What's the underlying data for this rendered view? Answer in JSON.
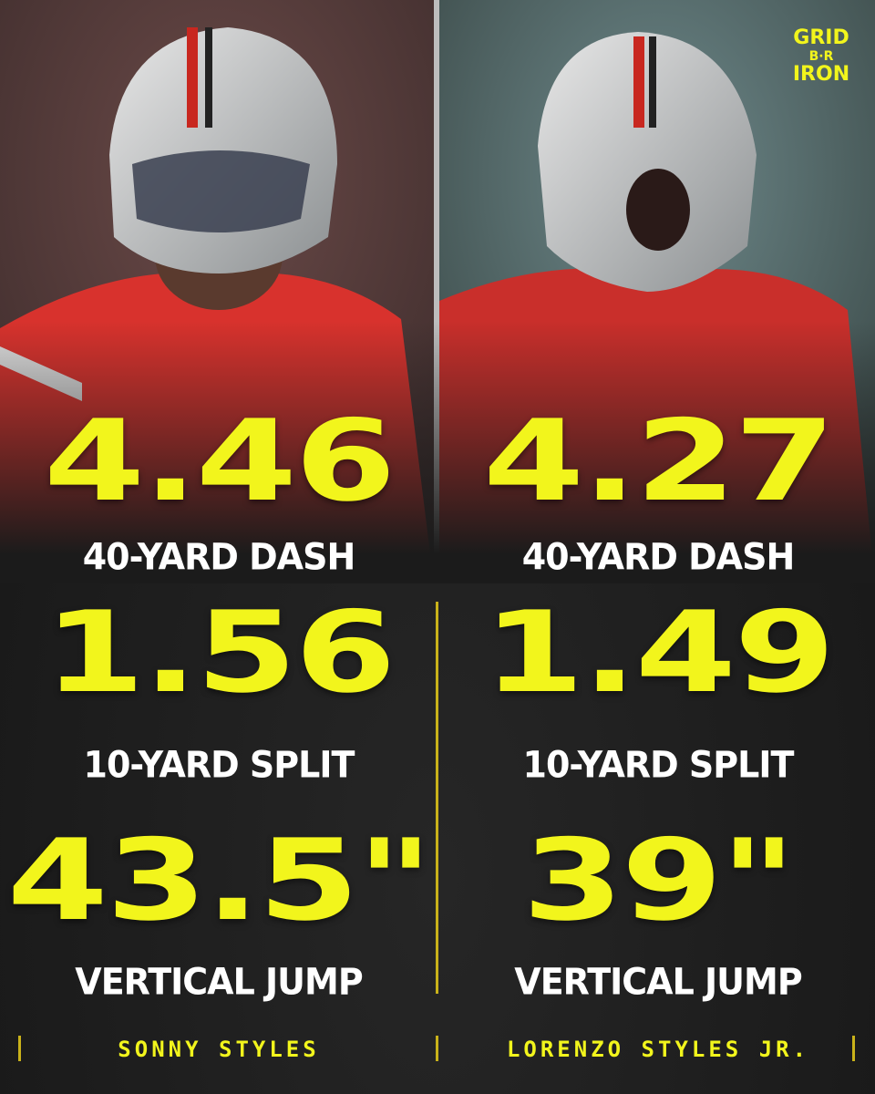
{
  "logo": {
    "line1": "GRID",
    "middle": "B·R",
    "line2": "IRON"
  },
  "players": [
    {
      "name": "SONNY STYLES",
      "stats": [
        {
          "value": "4.46",
          "label": "40-YARD DASH"
        },
        {
          "value": "1.56",
          "label": "10-YARD SPLIT"
        },
        {
          "value": "43.5\"",
          "label": "VERTICAL JUMP"
        }
      ]
    },
    {
      "name": "LORENZO STYLES JR.",
      "stats": [
        {
          "value": "4.27",
          "label": "40-YARD DASH"
        },
        {
          "value": "1.49",
          "label": "10-YARD SPLIT"
        },
        {
          "value": "39\"",
          "label": "VERTICAL JUMP"
        }
      ]
    }
  ]
}
